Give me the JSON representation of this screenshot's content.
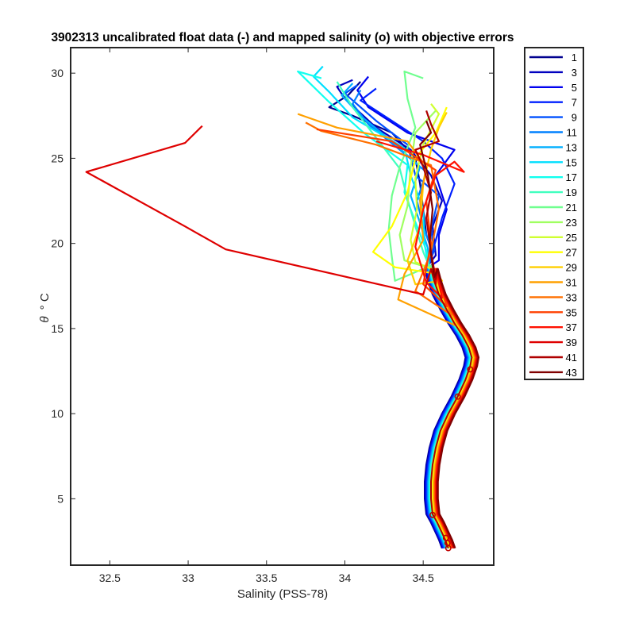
{
  "chart_data": {
    "type": "line",
    "title": "3902313 uncalibrated float data (-) and mapped salinity (o) with objective errors",
    "xlabel": "Salinity (PSS-78)",
    "ylabel_symbol": "θ",
    "ylabel_unit": "° C",
    "xlim": [
      32.25,
      34.95
    ],
    "ylim": [
      1.1,
      31.5
    ],
    "xticks": [
      32.5,
      33,
      33.5,
      34,
      34.5
    ],
    "xtick_labels": [
      "32.5",
      "33",
      "33.5",
      "34",
      "34.5"
    ],
    "yticks": [
      5,
      10,
      15,
      20,
      25,
      30
    ],
    "ytick_labels": [
      "5",
      "10",
      "15",
      "20",
      "25",
      "30"
    ],
    "grid": false,
    "legend_position": "outside-right",
    "legend_labels": [
      "1",
      "3",
      "5",
      "7",
      "9",
      "11",
      "13",
      "15",
      "17",
      "19",
      "21",
      "23",
      "25",
      "27",
      "29",
      "31",
      "33",
      "35",
      "37",
      "39",
      "41",
      "43"
    ],
    "legend_colors": [
      "#00008f",
      "#0000bf",
      "#0000ef",
      "#0020ff",
      "#0050ff",
      "#0080ff",
      "#00afff",
      "#00dfff",
      "#10ffef",
      "#40ffbf",
      "#70ff8f",
      "#9fff60",
      "#cfff30",
      "#ffff00",
      "#ffcf00",
      "#ffa000",
      "#ff7000",
      "#ff4000",
      "#ff1000",
      "#df0000",
      "#af0000",
      "#800000"
    ],
    "deep_profile": [
      [
        34.66,
        2.1
      ],
      [
        34.64,
        2.6
      ],
      [
        34.62,
        3.0
      ],
      [
        34.59,
        3.6
      ],
      [
        34.56,
        4.1
      ],
      [
        34.55,
        5.0
      ],
      [
        34.55,
        6.0
      ],
      [
        34.56,
        7.0
      ],
      [
        34.58,
        8.0
      ],
      [
        34.61,
        9.0
      ],
      [
        34.66,
        10.0
      ],
      [
        34.72,
        11.0
      ],
      [
        34.77,
        12.0
      ],
      [
        34.8,
        12.8
      ],
      [
        34.81,
        13.3
      ],
      [
        34.79,
        13.9
      ],
      [
        34.75,
        14.6
      ],
      [
        34.7,
        15.3
      ],
      [
        34.65,
        16.1
      ],
      [
        34.6,
        17.0
      ],
      [
        34.57,
        17.8
      ],
      [
        34.55,
        18.5
      ]
    ],
    "series": [
      {
        "color": "#00008f",
        "values": [
          [
            34.56,
            19.5
          ],
          [
            34.52,
            20.5
          ],
          [
            34.5,
            22.0
          ],
          [
            34.48,
            23.5
          ],
          [
            34.45,
            25.0
          ],
          [
            34.3,
            26.5
          ],
          [
            34.05,
            27.5
          ],
          [
            33.9,
            28.0
          ],
          [
            34.02,
            28.7
          ],
          [
            34.1,
            29.5
          ]
        ]
      },
      {
        "color": "#0000bf",
        "values": [
          [
            34.58,
            19.3
          ],
          [
            34.56,
            21.0
          ],
          [
            34.62,
            22.5
          ],
          [
            34.55,
            24.0
          ],
          [
            34.42,
            25.5
          ],
          [
            34.2,
            26.8
          ],
          [
            34.0,
            28.5
          ],
          [
            33.95,
            29.2
          ],
          [
            34.05,
            29.6
          ]
        ]
      },
      {
        "color": "#0000ef",
        "values": [
          [
            34.6,
            19.0
          ],
          [
            34.6,
            20.5
          ],
          [
            34.65,
            22.0
          ],
          [
            34.58,
            24.0
          ],
          [
            34.7,
            25.5
          ],
          [
            34.4,
            26.5
          ],
          [
            34.15,
            28.0
          ],
          [
            34.08,
            29.0
          ],
          [
            34.15,
            29.8
          ]
        ]
      },
      {
        "color": "#0020ff",
        "values": [
          [
            34.55,
            19.2
          ],
          [
            34.62,
            21.5
          ],
          [
            34.7,
            23.5
          ],
          [
            34.62,
            25.0
          ],
          [
            34.5,
            26.0
          ],
          [
            34.25,
            27.5
          ],
          [
            34.1,
            28.4
          ],
          [
            34.2,
            29.1
          ]
        ]
      },
      {
        "color": "#0050ff",
        "values": [
          [
            34.57,
            19.6
          ],
          [
            34.55,
            20.8
          ],
          [
            34.6,
            22.8
          ],
          [
            34.45,
            24.0
          ],
          [
            34.4,
            25.8
          ],
          [
            34.2,
            27.2
          ],
          [
            34.0,
            28.8
          ],
          [
            34.08,
            29.3
          ]
        ]
      },
      {
        "color": "#0080ff",
        "values": [
          [
            34.55,
            19.8
          ],
          [
            34.5,
            21.0
          ],
          [
            34.46,
            22.5
          ],
          [
            34.52,
            24.2
          ],
          [
            34.35,
            25.5
          ],
          [
            34.15,
            27.0
          ],
          [
            34.05,
            28.2
          ],
          [
            34.1,
            29.0
          ]
        ]
      },
      {
        "color": "#00afff",
        "values": [
          [
            34.53,
            19.7
          ],
          [
            34.48,
            21.2
          ],
          [
            34.42,
            22.8
          ],
          [
            34.48,
            24.5
          ],
          [
            34.3,
            26.0
          ],
          [
            34.1,
            27.5
          ],
          [
            33.98,
            28.7
          ],
          [
            34.05,
            29.4
          ]
        ]
      },
      {
        "color": "#00dfff",
        "values": [
          [
            34.51,
            19.9
          ],
          [
            34.5,
            22.0
          ],
          [
            34.42,
            24.0
          ],
          [
            34.38,
            25.6
          ],
          [
            34.05,
            27.4
          ],
          [
            33.9,
            28.9
          ],
          [
            33.8,
            29.8
          ],
          [
            33.86,
            30.4
          ]
        ]
      },
      {
        "color": "#10ffef",
        "values": [
          [
            34.52,
            19.6
          ],
          [
            34.44,
            21.5
          ],
          [
            34.38,
            23.0
          ],
          [
            34.4,
            24.6
          ],
          [
            34.12,
            26.5
          ],
          [
            33.9,
            28.3
          ],
          [
            33.7,
            30.1
          ],
          [
            33.85,
            29.7
          ]
        ]
      },
      {
        "color": "#40ffbf",
        "values": [
          [
            34.5,
            19.5
          ],
          [
            34.45,
            21.0
          ],
          [
            34.4,
            22.6
          ],
          [
            34.35,
            24.4
          ],
          [
            34.2,
            26.2
          ],
          [
            34.05,
            28.0
          ],
          [
            33.95,
            29.5
          ]
        ]
      },
      {
        "color": "#70ff8f",
        "values": [
          [
            34.55,
            18.7
          ],
          [
            34.32,
            17.8
          ],
          [
            34.3,
            19.2
          ],
          [
            34.28,
            20.8
          ],
          [
            34.3,
            22.8
          ],
          [
            34.35,
            24.5
          ],
          [
            34.45,
            26.8
          ],
          [
            34.4,
            28.5
          ],
          [
            34.38,
            30.1
          ],
          [
            34.5,
            29.7
          ]
        ]
      },
      {
        "color": "#9fff60",
        "values": [
          [
            34.56,
            18.5
          ],
          [
            34.38,
            19.0
          ],
          [
            34.35,
            20.5
          ],
          [
            34.4,
            22.2
          ],
          [
            34.42,
            24.5
          ],
          [
            34.45,
            26.5
          ],
          [
            34.58,
            27.8
          ]
        ]
      },
      {
        "color": "#cfff30",
        "values": [
          [
            34.58,
            18.4
          ],
          [
            34.45,
            18.9
          ],
          [
            34.42,
            20.2
          ],
          [
            34.46,
            22.0
          ],
          [
            34.45,
            23.8
          ],
          [
            34.5,
            25.8
          ],
          [
            34.6,
            27.6
          ],
          [
            34.55,
            28.2
          ]
        ]
      },
      {
        "color": "#ffff00",
        "values": [
          [
            34.6,
            18.2
          ],
          [
            34.32,
            18.6
          ],
          [
            34.18,
            19.5
          ],
          [
            34.3,
            21.0
          ],
          [
            34.4,
            23.0
          ],
          [
            34.45,
            25.0
          ],
          [
            34.58,
            26.5
          ],
          [
            34.65,
            28.0
          ]
        ]
      },
      {
        "color": "#ffcf00",
        "values": [
          [
            34.62,
            17.8
          ],
          [
            34.45,
            17.6
          ],
          [
            34.4,
            19.0
          ],
          [
            34.48,
            21.0
          ],
          [
            34.5,
            23.5
          ],
          [
            34.55,
            25.5
          ],
          [
            34.6,
            26.8
          ],
          [
            34.65,
            27.7
          ]
        ]
      },
      {
        "color": "#ffa000",
        "values": [
          [
            34.7,
            15.2
          ],
          [
            34.34,
            16.7
          ],
          [
            34.38,
            18.2
          ],
          [
            34.5,
            20.2
          ],
          [
            34.48,
            22.5
          ],
          [
            34.52,
            24.5
          ],
          [
            34.4,
            26.0
          ],
          [
            33.95,
            26.8
          ],
          [
            33.7,
            27.6
          ]
        ]
      },
      {
        "color": "#ff7000",
        "values": [
          [
            34.68,
            15.8
          ],
          [
            34.45,
            17.2
          ],
          [
            34.55,
            19.5
          ],
          [
            34.6,
            22.0
          ],
          [
            34.55,
            24.6
          ],
          [
            34.2,
            25.8
          ],
          [
            33.85,
            26.6
          ],
          [
            33.75,
            27.1
          ]
        ]
      },
      {
        "color": "#ff4000",
        "values": [
          [
            34.65,
            16.3
          ],
          [
            34.5,
            17.6
          ],
          [
            34.55,
            20.0
          ],
          [
            34.52,
            22.5
          ],
          [
            34.58,
            24.3
          ],
          [
            34.3,
            26.0
          ],
          [
            33.82,
            26.7
          ]
        ]
      },
      {
        "color": "#ff1000",
        "values": [
          [
            34.62,
            16.8
          ],
          [
            34.52,
            17.7
          ],
          [
            34.45,
            19.8
          ],
          [
            34.5,
            22.0
          ],
          [
            34.58,
            24.0
          ],
          [
            34.7,
            24.8
          ],
          [
            34.76,
            24.2
          ],
          [
            34.5,
            25.2
          ],
          [
            34.2,
            26.0
          ]
        ]
      },
      {
        "color": "#df0000",
        "values": [
          [
            34.58,
            17.6
          ],
          [
            34.55,
            18.5
          ],
          [
            34.5,
            17.0
          ],
          [
            33.24,
            19.65
          ],
          [
            32.98,
            21.0
          ],
          [
            32.35,
            24.2
          ],
          [
            32.98,
            25.9
          ],
          [
            33.09,
            26.9
          ]
        ]
      },
      {
        "color": "#af0000",
        "values": [
          [
            34.58,
            17.9
          ],
          [
            34.55,
            19.5
          ],
          [
            34.52,
            21.5
          ],
          [
            34.55,
            23.0
          ],
          [
            34.5,
            24.5
          ],
          [
            34.45,
            25.5
          ],
          [
            34.6,
            26.0
          ],
          [
            34.55,
            27.0
          ],
          [
            34.52,
            27.8
          ]
        ]
      },
      {
        "color": "#800000",
        "values": [
          [
            34.57,
            18.0
          ],
          [
            34.54,
            20.0
          ],
          [
            34.56,
            22.0
          ],
          [
            34.53,
            24.0
          ],
          [
            34.48,
            25.8
          ],
          [
            34.55,
            26.5
          ],
          [
            34.52,
            27.2
          ]
        ]
      }
    ]
  }
}
